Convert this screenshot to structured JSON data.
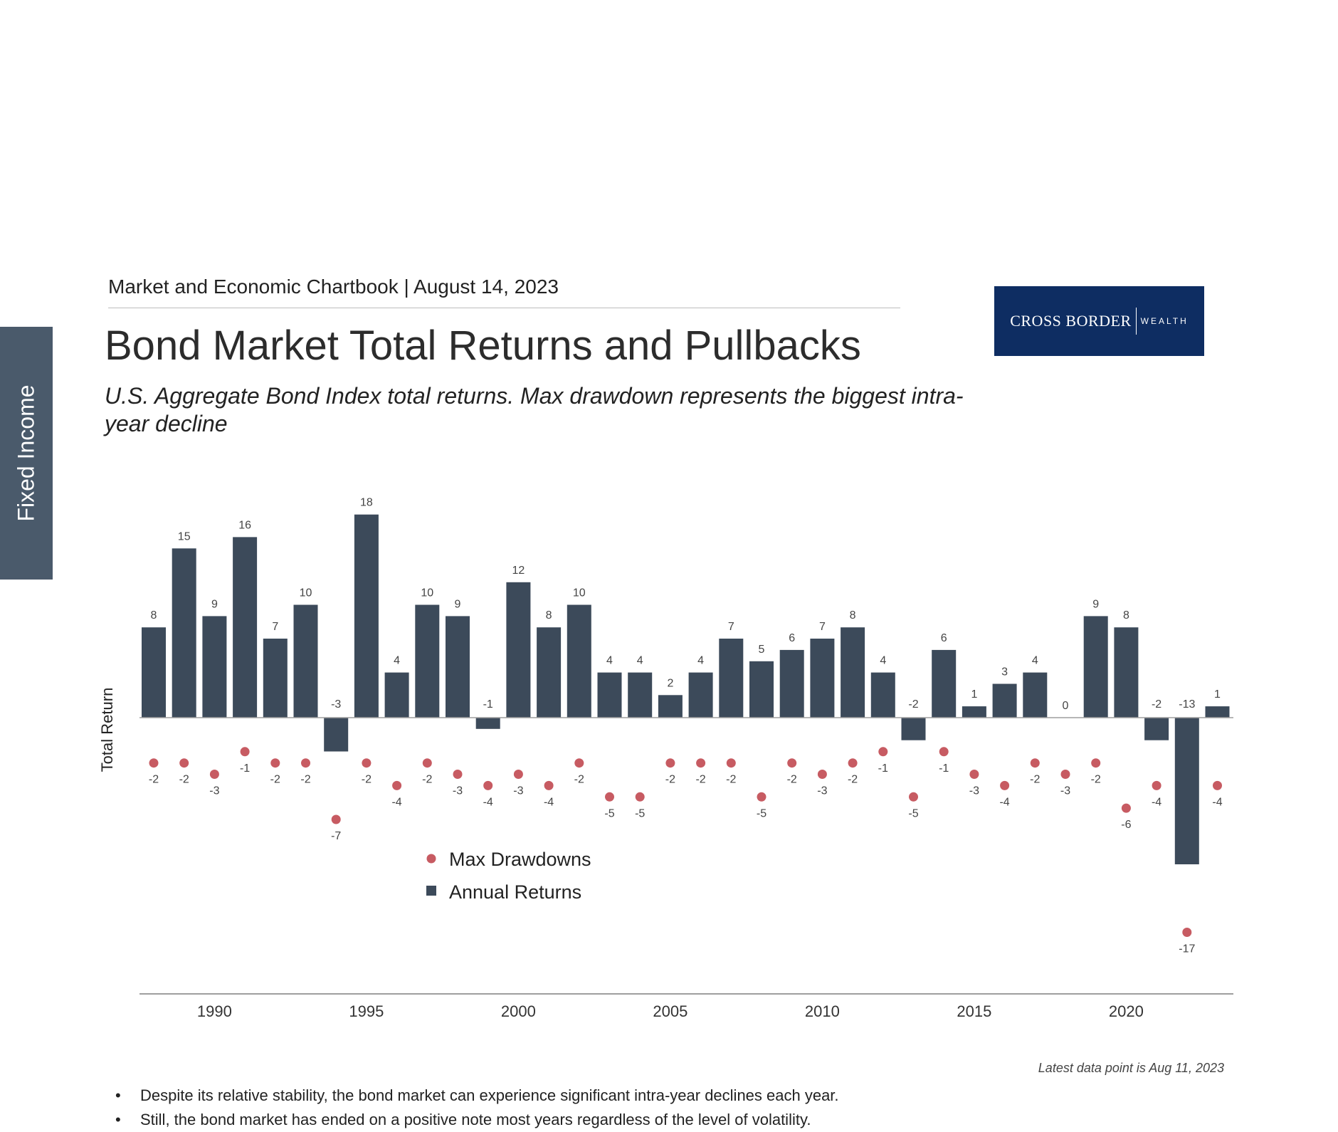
{
  "side_tab": {
    "label": "Fixed Income"
  },
  "header": {
    "text": "Market and Economic Chartbook | August 14, 2023"
  },
  "title": "Bond Market Total Returns and Pullbacks",
  "subtitle": "U.S. Aggregate Bond Index total returns. Max drawdown represents the biggest intra-year decline",
  "logo": {
    "main": "CROSS BORDER",
    "small": "WEALTH"
  },
  "note": "Latest data point is Aug 11, 2023",
  "bullets": [
    "Despite its relative stability, the bond market can experience significant intra-year declines each year.",
    "Still, the bond market has ended on a positive note most years regardless of the level of volatility."
  ],
  "colors": {
    "bar": "#3c4a5a",
    "dot": "#c75b62",
    "tab": "#4a5a6b",
    "logo": "#0e2d62"
  },
  "chart_data": {
    "type": "bar",
    "ylabel": "Total Return",
    "xlim": [
      1988,
      2023
    ],
    "ylim": [
      -17,
      18
    ],
    "xticks": [
      1990,
      1995,
      2000,
      2005,
      2010,
      2015,
      2020
    ],
    "legend_position": "lower-left",
    "categories": [
      1988,
      1989,
      1990,
      1991,
      1992,
      1993,
      1994,
      1995,
      1996,
      1997,
      1998,
      1999,
      2000,
      2001,
      2002,
      2003,
      2004,
      2005,
      2006,
      2007,
      2008,
      2009,
      2010,
      2011,
      2012,
      2013,
      2014,
      2015,
      2016,
      2017,
      2018,
      2019,
      2020,
      2021,
      2022,
      2023
    ],
    "series": [
      {
        "name": "Annual Returns",
        "kind": "bar",
        "values": [
          8,
          15,
          9,
          16,
          7,
          10,
          -3,
          18,
          4,
          10,
          9,
          -1,
          12,
          8,
          10,
          4,
          4,
          2,
          4,
          7,
          5,
          6,
          7,
          8,
          4,
          -2,
          6,
          1,
          3,
          4,
          0,
          9,
          8,
          -2,
          -13,
          1
        ]
      },
      {
        "name": "Max Drawdowns",
        "kind": "dot",
        "values": [
          -2,
          -2,
          -3,
          -1,
          -2,
          -2,
          -7,
          -2,
          -4,
          -2,
          -3,
          -4,
          -3,
          -4,
          -2,
          -5,
          -5,
          -2,
          -2,
          -2,
          -5,
          -2,
          -3,
          -2,
          -1,
          -5,
          -1,
          -3,
          -4,
          -2,
          -3,
          -2,
          -6,
          -4,
          -17,
          -4
        ]
      }
    ]
  }
}
